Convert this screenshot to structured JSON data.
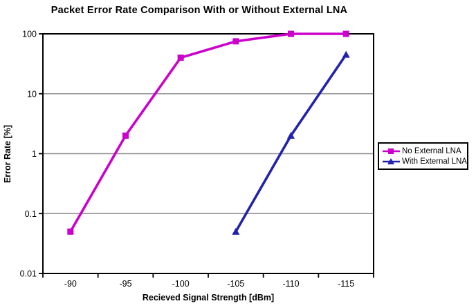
{
  "title": "Packet Error Rate Comparison With or Without External LNA",
  "chart_data": {
    "type": "line",
    "title": "Packet Error Rate Comparison With or Without External LNA",
    "xlabel": "Recieved Signal Strength [dBm]",
    "ylabel": "Error Rate [%]",
    "x_tick_labels": [
      "-90",
      "-95",
      "-100",
      "-105",
      "-110",
      "-115"
    ],
    "y_scale": "log",
    "y_tick_labels": [
      "100",
      "10",
      "1",
      "0.1",
      "0.01"
    ],
    "y_tick_values": [
      100,
      10,
      1,
      0.1,
      0.01
    ],
    "ylim": [
      0.01,
      100
    ],
    "grid": "horizontal gridlines at each decade, gray",
    "legend_position": "right, boxed",
    "series": [
      {
        "name": "No External LNA",
        "color": "#CC00CC",
        "marker": "square",
        "x": [
          -90,
          -95,
          -100,
          -105,
          -110,
          -115
        ],
        "values": [
          0.05,
          2,
          40,
          75,
          100,
          100
        ]
      },
      {
        "name": "With External LNA",
        "color": "#2222AC",
        "marker": "triangle",
        "x": [
          -105,
          -110,
          -115
        ],
        "values": [
          0.05,
          2,
          45
        ]
      }
    ]
  },
  "colors": {
    "background": "#FFFFFF",
    "axis": "#000000",
    "gridline": "#909090",
    "series_no_lna": "#CC00CC",
    "series_with_lna": "#2222AC"
  }
}
